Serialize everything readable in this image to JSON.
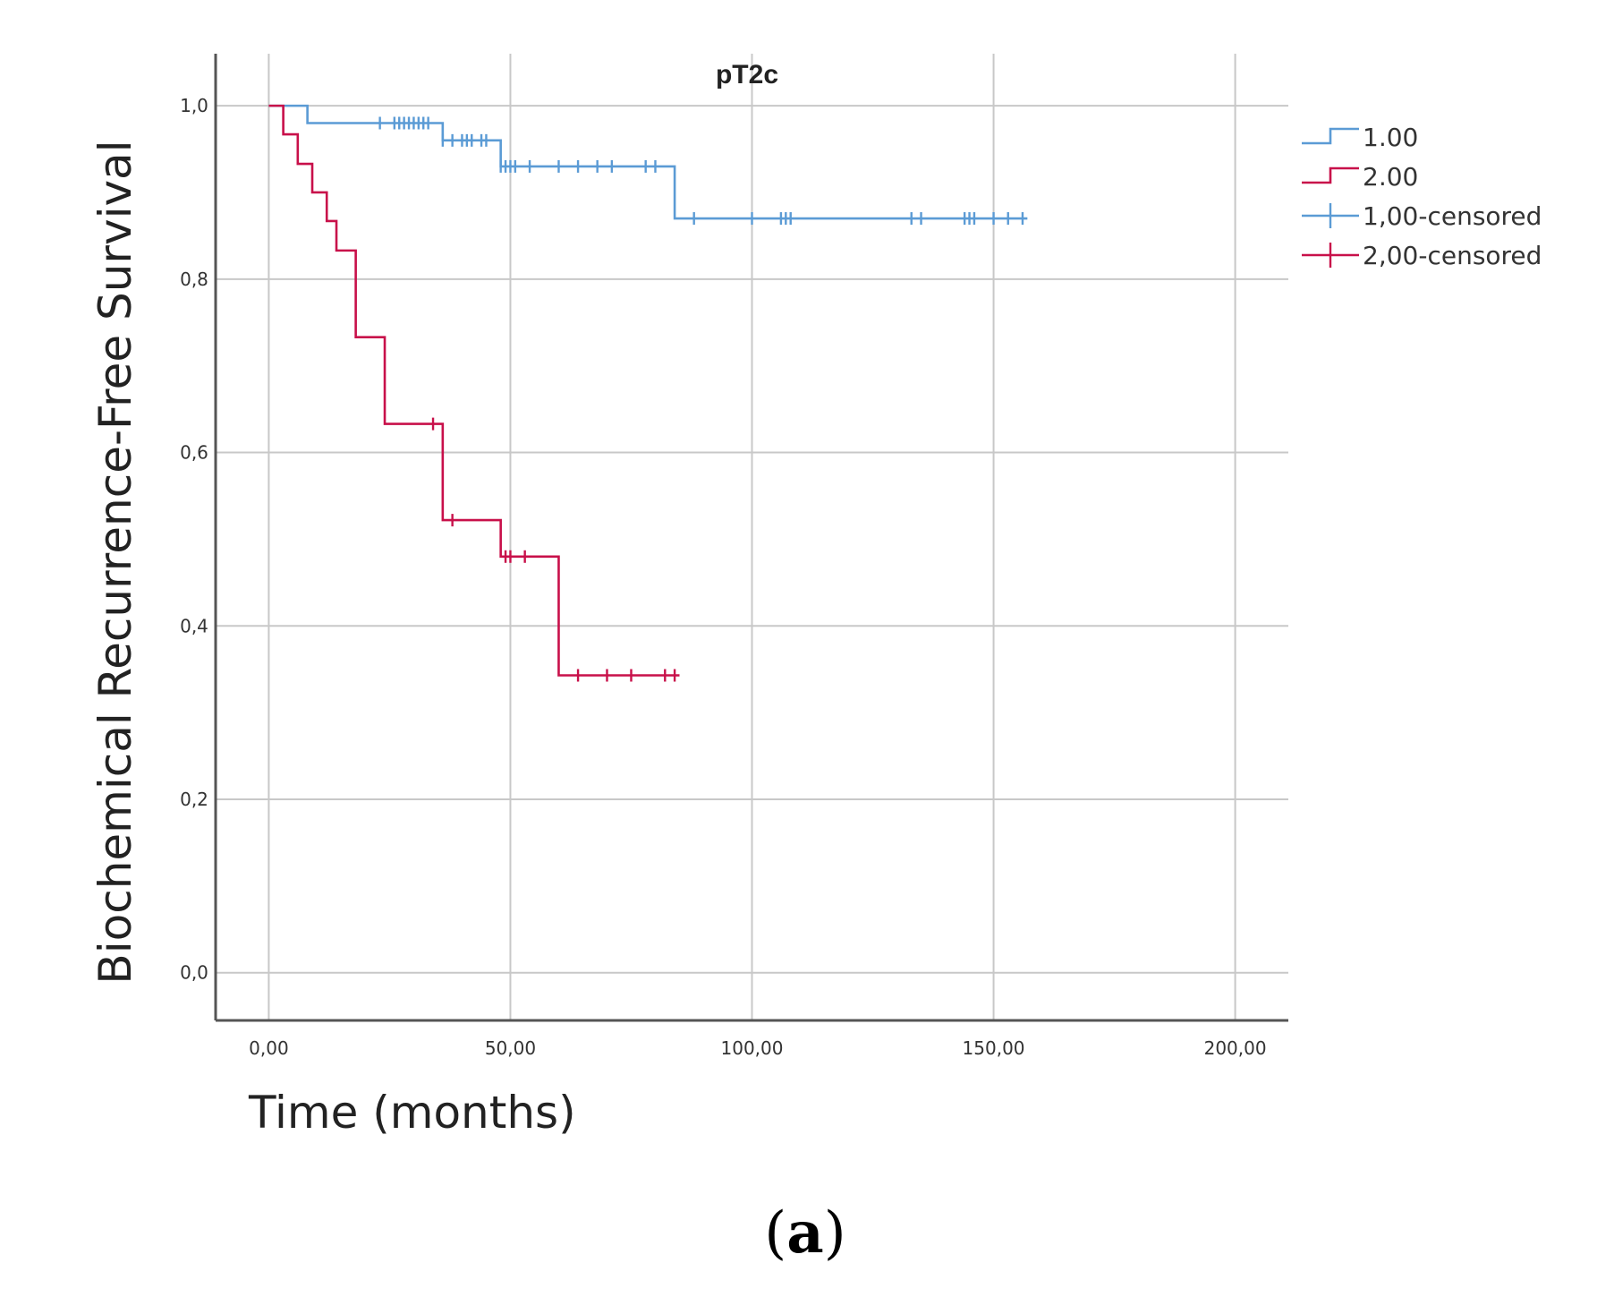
{
  "colors": {
    "series_1": "#5b9bd5",
    "series_2": "#c8104a",
    "grid": "#c8c8c8",
    "axis": "#555555"
  },
  "caption": {
    "open": "(",
    "letter": "a",
    "close": ")"
  },
  "chart_data": {
    "type": "line",
    "subtype": "kaplan-meier",
    "title": "pT2c",
    "xlabel": "Time (months)",
    "ylabel": "Biochemical Recurrence-Free Survival",
    "xlim": [
      -11,
      211
    ],
    "ylim": [
      -0.055,
      1.06
    ],
    "x_ticks": [
      0,
      50,
      100,
      150,
      200
    ],
    "x_tick_labels": [
      "0,00",
      "50,00",
      "100,00",
      "150,00",
      "200,00"
    ],
    "y_ticks": [
      0,
      0.2,
      0.4,
      0.6,
      0.8,
      1.0
    ],
    "y_tick_labels": [
      "0,0",
      "0,2",
      "0,4",
      "0,6",
      "0,8",
      "1,0"
    ],
    "grid": true,
    "legend_position": "right",
    "legend": [
      {
        "label": "1.00",
        "series": 0,
        "kind": "line"
      },
      {
        "label": "2.00",
        "series": 1,
        "kind": "line"
      },
      {
        "label": "1,00-censored",
        "series": 0,
        "kind": "censor"
      },
      {
        "label": "2,00-censored",
        "series": 1,
        "kind": "censor"
      }
    ],
    "series": [
      {
        "name": "1.00",
        "color": "#5b9bd5",
        "steps": [
          [
            0,
            1.0
          ],
          [
            8,
            0.98
          ],
          [
            36,
            0.96
          ],
          [
            48,
            0.93
          ],
          [
            84,
            0.87
          ],
          [
            157,
            0.87
          ]
        ],
        "censored": [
          [
            23,
            0.98
          ],
          [
            26,
            0.98
          ],
          [
            27,
            0.98
          ],
          [
            28,
            0.98
          ],
          [
            29,
            0.98
          ],
          [
            30,
            0.98
          ],
          [
            31,
            0.98
          ],
          [
            32,
            0.98
          ],
          [
            33,
            0.98
          ],
          [
            36,
            0.96
          ],
          [
            38,
            0.96
          ],
          [
            40,
            0.96
          ],
          [
            41,
            0.96
          ],
          [
            42,
            0.96
          ],
          [
            44,
            0.96
          ],
          [
            45,
            0.96
          ],
          [
            48,
            0.93
          ],
          [
            49,
            0.93
          ],
          [
            50,
            0.93
          ],
          [
            51,
            0.93
          ],
          [
            54,
            0.93
          ],
          [
            60,
            0.93
          ],
          [
            64,
            0.93
          ],
          [
            68,
            0.93
          ],
          [
            71,
            0.93
          ],
          [
            78,
            0.93
          ],
          [
            80,
            0.93
          ],
          [
            88,
            0.87
          ],
          [
            100,
            0.87
          ],
          [
            106,
            0.87
          ],
          [
            107,
            0.87
          ],
          [
            108,
            0.87
          ],
          [
            133,
            0.87
          ],
          [
            135,
            0.87
          ],
          [
            144,
            0.87
          ],
          [
            145,
            0.87
          ],
          [
            146,
            0.87
          ],
          [
            150,
            0.87
          ],
          [
            153,
            0.87
          ],
          [
            156,
            0.87
          ]
        ]
      },
      {
        "name": "2.00",
        "color": "#c8104a",
        "steps": [
          [
            0,
            1.0
          ],
          [
            3,
            0.967
          ],
          [
            6,
            0.933
          ],
          [
            9,
            0.9
          ],
          [
            12,
            0.867
          ],
          [
            14,
            0.833
          ],
          [
            18,
            0.733
          ],
          [
            24,
            0.633
          ],
          [
            36,
            0.522
          ],
          [
            48,
            0.48
          ],
          [
            60,
            0.343
          ],
          [
            85,
            0.343
          ]
        ],
        "censored": [
          [
            34,
            0.633
          ],
          [
            38,
            0.522
          ],
          [
            49,
            0.48
          ],
          [
            50,
            0.48
          ],
          [
            53,
            0.48
          ],
          [
            64,
            0.343
          ],
          [
            70,
            0.343
          ],
          [
            75,
            0.343
          ],
          [
            82,
            0.343
          ],
          [
            84,
            0.343
          ]
        ]
      }
    ]
  }
}
